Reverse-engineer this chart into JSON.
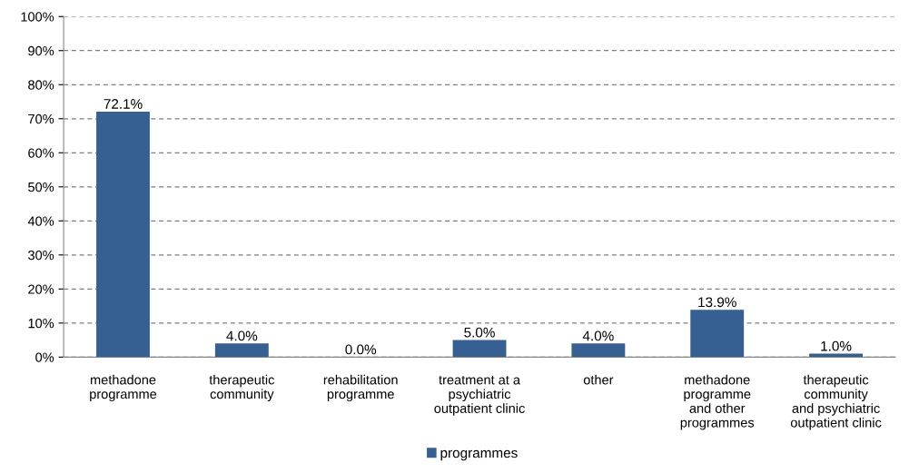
{
  "chart_data": {
    "type": "bar",
    "categories": [
      "methadone\nprogramme",
      "therapeutic\ncommunity",
      "rehabilitation\nprogramme",
      "treatment at a\npsychiatric\noutpatient clinic",
      "other",
      "methadone\nprogramme\nand other\nprogrammes",
      "therapeutic\ncommunity\nand psychiatric\noutpatient clinic"
    ],
    "series": [
      {
        "name": "programmes",
        "color": "#376092",
        "values": [
          72.1,
          4.0,
          0.0,
          5.0,
          4.0,
          13.9,
          1.0
        ],
        "value_labels": [
          "72.1%",
          "4.0%",
          "0.0%",
          "5.0%",
          "4.0%",
          "13.9%",
          "1.0%"
        ]
      }
    ],
    "ylim": [
      0,
      100
    ],
    "yticks": [
      {
        "value": 0,
        "label": "0%"
      },
      {
        "value": 10,
        "label": "10%"
      },
      {
        "value": 20,
        "label": "20%"
      },
      {
        "value": 30,
        "label": "30%"
      },
      {
        "value": 40,
        "label": "40%"
      },
      {
        "value": 50,
        "label": "50%"
      },
      {
        "value": 60,
        "label": "60%"
      },
      {
        "value": 70,
        "label": "70%"
      },
      {
        "value": 80,
        "label": "80%"
      },
      {
        "value": 90,
        "label": "90%"
      },
      {
        "value": 100,
        "label": "100%"
      }
    ],
    "grid": "y",
    "line_style": "dashed",
    "legend": "bottom"
  }
}
